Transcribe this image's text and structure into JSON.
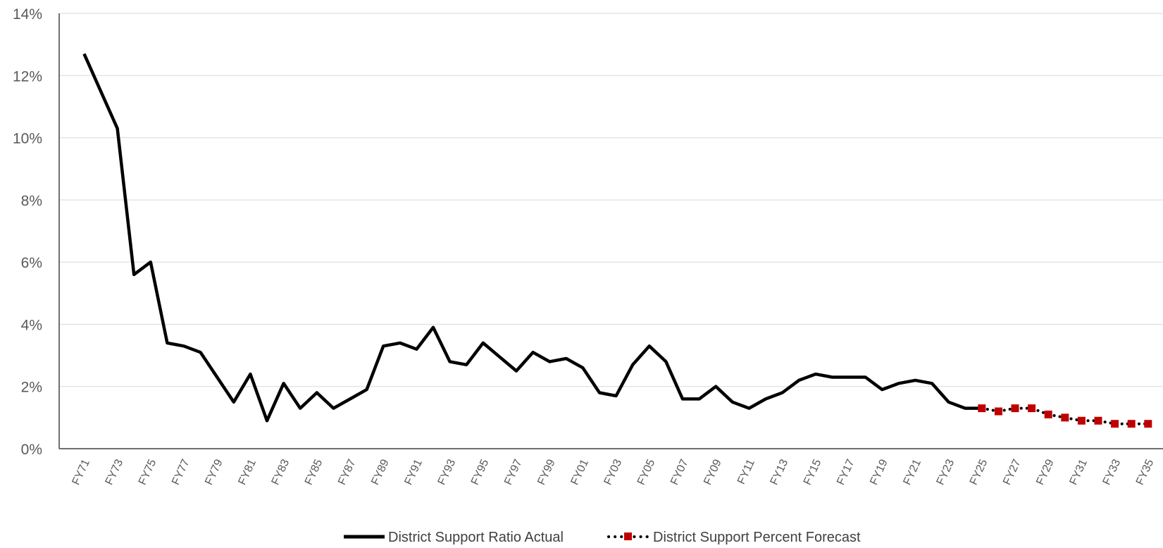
{
  "chart_data": {
    "type": "line",
    "title": "",
    "xlabel": "",
    "ylabel": "",
    "ylim": [
      0,
      0.14
    ],
    "y_ticks": [
      0,
      0.02,
      0.04,
      0.06,
      0.08,
      0.1,
      0.12,
      0.14
    ],
    "y_tick_labels": [
      "0%",
      "2%",
      "4%",
      "6%",
      "8%",
      "10%",
      "12%",
      "14%"
    ],
    "y_format": "percent",
    "grid": true,
    "legend_position": "bottom",
    "categories": [
      "FY71",
      "FY72",
      "FY73",
      "FY74",
      "FY75",
      "FY76",
      "FY77",
      "FY78",
      "FY79",
      "FY80",
      "FY81",
      "FY82",
      "FY83",
      "FY84",
      "FY85",
      "FY86",
      "FY87",
      "FY88",
      "FY89",
      "FY90",
      "FY91",
      "FY92",
      "FY93",
      "FY94",
      "FY95",
      "FY96",
      "FY97",
      "FY98",
      "FY99",
      "FY00",
      "FY01",
      "FY02",
      "FY03",
      "FY04",
      "FY05",
      "FY06",
      "FY07",
      "FY08",
      "FY09",
      "FY10",
      "FY11",
      "FY12",
      "FY13",
      "FY14",
      "FY15",
      "FY16",
      "FY17",
      "FY18",
      "FY19",
      "FY20",
      "FY21",
      "FY22",
      "FY23",
      "FY24",
      "FY25",
      "FY26",
      "FY27",
      "FY28",
      "FY29",
      "FY30",
      "FY31",
      "FY32",
      "FY33",
      "FY34",
      "FY35"
    ],
    "x_tick_labels": [
      "FY71",
      "FY73",
      "FY75",
      "FY77",
      "FY79",
      "FY81",
      "FY83",
      "FY85",
      "FY87",
      "FY89",
      "FY91",
      "FY93",
      "FY95",
      "FY97",
      "FY99",
      "FY01",
      "FY03",
      "FY05",
      "FY07",
      "FY09",
      "FY11",
      "FY13",
      "FY15",
      "FY17",
      "FY19",
      "FY21",
      "FY23",
      "FY25",
      "FY27",
      "FY29",
      "FY31",
      "FY33",
      "FY35"
    ],
    "series": [
      {
        "name": "District Support Ratio Actual",
        "color": "#000000",
        "style": "solid",
        "values": [
          0.127,
          0.115,
          0.103,
          0.056,
          0.06,
          0.034,
          0.033,
          0.031,
          0.023,
          0.015,
          0.024,
          0.009,
          0.021,
          0.013,
          0.018,
          0.013,
          0.016,
          0.019,
          0.033,
          0.034,
          0.032,
          0.039,
          0.028,
          0.027,
          0.034,
          0.0295,
          0.025,
          0.031,
          0.028,
          0.029,
          0.026,
          0.018,
          0.017,
          0.027,
          0.033,
          0.028,
          0.016,
          0.016,
          0.02,
          0.015,
          0.013,
          0.016,
          0.018,
          0.022,
          0.024,
          0.023,
          0.023,
          0.023,
          0.019,
          0.021,
          0.022,
          0.021,
          0.015,
          0.013,
          0.013,
          null,
          null,
          null,
          null,
          null,
          null,
          null,
          null,
          null,
          null
        ]
      },
      {
        "name": "District Support Percent Forecast",
        "color": "#000000",
        "marker_color": "#c00000",
        "style": "dotted",
        "marker": "square",
        "values": [
          null,
          null,
          null,
          null,
          null,
          null,
          null,
          null,
          null,
          null,
          null,
          null,
          null,
          null,
          null,
          null,
          null,
          null,
          null,
          null,
          null,
          null,
          null,
          null,
          null,
          null,
          null,
          null,
          null,
          null,
          null,
          null,
          null,
          null,
          null,
          null,
          null,
          null,
          null,
          null,
          null,
          null,
          null,
          null,
          null,
          null,
          null,
          null,
          null,
          null,
          null,
          null,
          null,
          null,
          0.013,
          0.012,
          0.013,
          0.013,
          0.011,
          0.01,
          0.009,
          0.009,
          0.008,
          0.008,
          0.008
        ]
      }
    ]
  }
}
